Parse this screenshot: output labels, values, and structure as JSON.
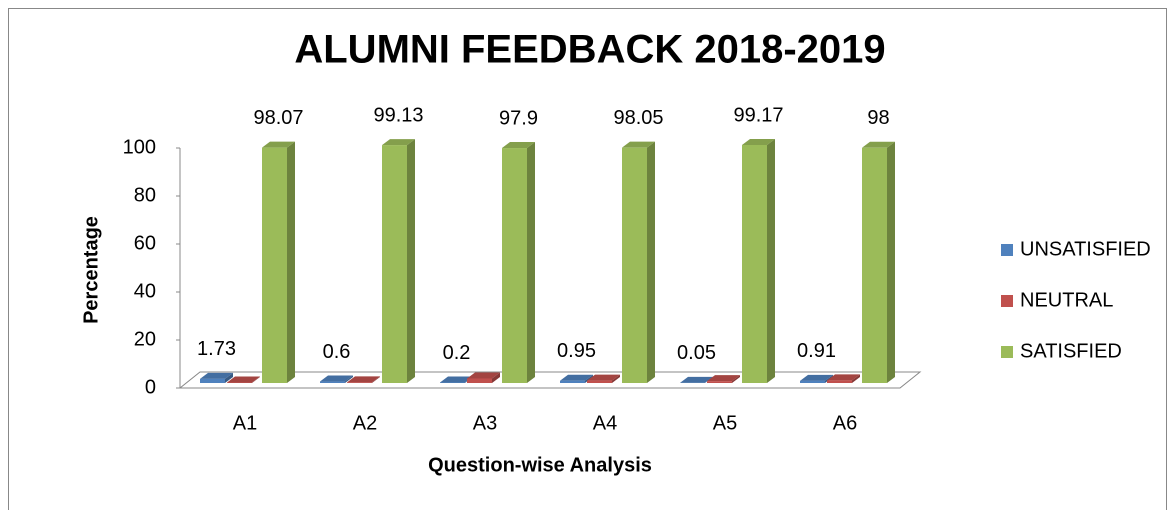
{
  "chart_data": {
    "type": "bar3d",
    "title": "ALUMNI FEEDBACK 2018-2019",
    "x_label": "Question-wise Analysis",
    "y_label": "Percentage",
    "categories": [
      "A1",
      "A2",
      "A3",
      "A4",
      "A5",
      "A6"
    ],
    "series": [
      {
        "name": "UNSATISFIED",
        "color": "#4f81bd",
        "labels": true,
        "values": [
          1.73,
          0.6,
          0.2,
          0.95,
          0.05,
          0.91
        ]
      },
      {
        "name": "NEUTRAL",
        "color": "#c0504d",
        "labels": false,
        "values": [
          0.2,
          0.27,
          1.9,
          1.0,
          0.78,
          1.09
        ]
      },
      {
        "name": "SATISFIED",
        "color": "#9bbb59",
        "labels": true,
        "values": [
          98.07,
          99.13,
          97.9,
          98.05,
          99.17,
          98
        ]
      }
    ],
    "ylim": [
      0,
      100
    ],
    "yticks": [
      0,
      20,
      40,
      60,
      80,
      100
    ],
    "grid": false,
    "legend": "right"
  }
}
